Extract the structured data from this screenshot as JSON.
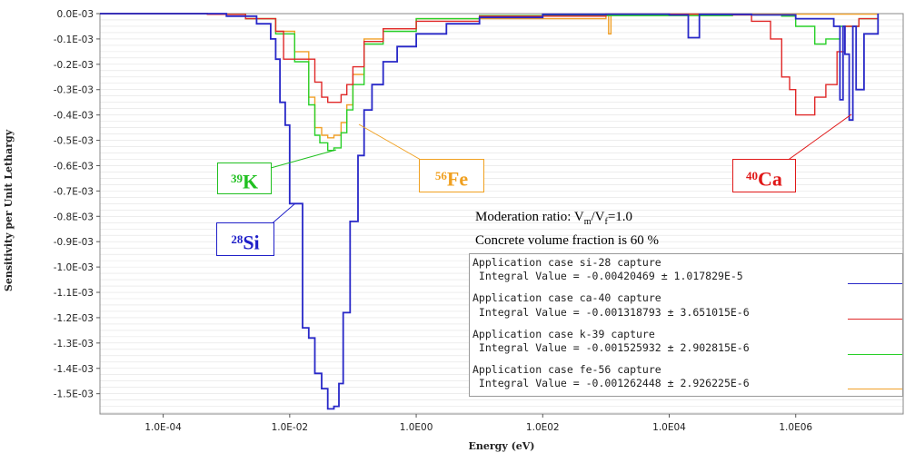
{
  "chart_data": {
    "type": "line",
    "xlabel": "Energy (eV)",
    "ylabel": "Sensitivity per Unit Lethargy",
    "xscale": "log",
    "xlim": [
      1e-05,
      50000000
    ],
    "ylim": [
      -0.00158,
      0
    ],
    "grid": true,
    "x_ticks": [
      "1.0E-04",
      "1.0E-02",
      "1.0E00",
      "1.0E02",
      "1.0E04",
      "1.0E06"
    ],
    "x_tick_values": [
      0.0001,
      0.01,
      1,
      100,
      10000,
      1000000
    ],
    "y_ticks": [
      "0.0E-03",
      "-0.1E-03",
      "-0.2E-03",
      "-0.3E-03",
      "-0.4E-03",
      "-0.5E-03",
      "-0.6E-03",
      "-0.7E-03",
      "-0.8E-03",
      "-0.9E-03",
      "-1.0E-03",
      "-1.1E-03",
      "-1.2E-03",
      "-1.3E-03",
      "-1.4E-03",
      "-1.5E-03"
    ],
    "y_tick_values": [
      0,
      -0.0001,
      -0.0002,
      -0.0003,
      -0.0004,
      -0.0005,
      -0.0006,
      -0.0007,
      -0.0008,
      -0.0009,
      -0.001,
      -0.0011,
      -0.0012,
      -0.0013,
      -0.0014,
      -0.0015
    ],
    "series": [
      {
        "key": "si",
        "color": "#2828c8",
        "points": [
          [
            1e-05,
            0
          ],
          [
            0.001,
            -1e-05
          ],
          [
            0.003,
            -4e-05
          ],
          [
            0.005,
            -0.0001
          ],
          [
            0.006,
            -0.00018
          ],
          [
            0.007,
            -0.00035
          ],
          [
            0.0085,
            -0.00044
          ],
          [
            0.01,
            -0.00075
          ],
          [
            0.014,
            -0.00075
          ],
          [
            0.016,
            -0.00124
          ],
          [
            0.02,
            -0.00128
          ],
          [
            0.025,
            -0.00142
          ],
          [
            0.032,
            -0.00148
          ],
          [
            0.04,
            -0.00156
          ],
          [
            0.05,
            -0.00155
          ],
          [
            0.06,
            -0.00146
          ],
          [
            0.07,
            -0.00118
          ],
          [
            0.09,
            -0.00082
          ],
          [
            0.12,
            -0.00056
          ],
          [
            0.15,
            -0.00038
          ],
          [
            0.2,
            -0.00028
          ],
          [
            0.3,
            -0.00019
          ],
          [
            0.5,
            -0.00013
          ],
          [
            1,
            -8e-05
          ],
          [
            3,
            -4e-05
          ],
          [
            10,
            -1.5e-05
          ],
          [
            100,
            -3e-06
          ],
          [
            1000,
            -2e-06
          ],
          [
            10000,
            -5e-06
          ],
          [
            20000,
            -9.5e-05
          ],
          [
            30000,
            -3e-06
          ],
          [
            200000,
            -5e-06
          ],
          [
            1000000,
            -2e-05
          ],
          [
            4000000,
            -5e-05
          ],
          [
            5000000,
            -0.00034
          ],
          [
            5600000,
            -5e-05
          ],
          [
            6000000,
            -0.00016
          ],
          [
            7000000,
            -0.00042
          ],
          [
            8000000,
            -5e-05
          ],
          [
            9000000,
            -0.0003
          ],
          [
            12000000,
            -8e-05
          ],
          [
            20000000,
            0
          ]
        ]
      },
      {
        "key": "ca",
        "color": "#e02828",
        "points": [
          [
            1e-05,
            0
          ],
          [
            0.0005,
            -3e-06
          ],
          [
            0.002,
            -2e-05
          ],
          [
            0.006,
            -7e-05
          ],
          [
            0.008,
            -0.00018
          ],
          [
            0.02,
            -0.00018
          ],
          [
            0.025,
            -0.00027
          ],
          [
            0.032,
            -0.00033
          ],
          [
            0.04,
            -0.00035
          ],
          [
            0.05,
            -0.00035
          ],
          [
            0.065,
            -0.00032
          ],
          [
            0.08,
            -0.00028
          ],
          [
            0.1,
            -0.00021
          ],
          [
            0.15,
            -0.00011
          ],
          [
            0.3,
            -6e-05
          ],
          [
            1,
            -3e-05
          ],
          [
            10,
            -1e-05
          ],
          [
            1000,
            -2e-06
          ],
          [
            100000,
            -5e-06
          ],
          [
            200000,
            -3e-05
          ],
          [
            400000,
            -0.0001
          ],
          [
            600000,
            -0.00025
          ],
          [
            800000,
            -0.0003
          ],
          [
            1000000,
            -0.0004
          ],
          [
            1500000,
            -0.0004
          ],
          [
            2000000,
            -0.00033
          ],
          [
            3000000,
            -0.00028
          ],
          [
            4500000,
            -0.00015
          ],
          [
            6000000,
            -5e-05
          ],
          [
            10000000,
            -2e-05
          ],
          [
            20000000,
            0
          ]
        ]
      },
      {
        "key": "k",
        "color": "#28d028",
        "points": [
          [
            1e-05,
            0
          ],
          [
            0.0005,
            -3e-06
          ],
          [
            0.002,
            -2e-05
          ],
          [
            0.006,
            -8e-05
          ],
          [
            0.012,
            -0.00019
          ],
          [
            0.02,
            -0.00036
          ],
          [
            0.025,
            -0.00048
          ],
          [
            0.03,
            -0.00051
          ],
          [
            0.04,
            -0.00054
          ],
          [
            0.05,
            -0.00053
          ],
          [
            0.065,
            -0.00047
          ],
          [
            0.08,
            -0.00038
          ],
          [
            0.1,
            -0.00028
          ],
          [
            0.15,
            -0.00012
          ],
          [
            0.3,
            -7e-05
          ],
          [
            1,
            -2e-05
          ],
          [
            10,
            -8e-06
          ],
          [
            100000,
            -5e-06
          ],
          [
            600000,
            -1e-05
          ],
          [
            1000000,
            -5e-05
          ],
          [
            2000000,
            -0.00012
          ],
          [
            3000000,
            -0.0001
          ],
          [
            5000000,
            -5e-05
          ],
          [
            10000000,
            -2e-05
          ],
          [
            20000000,
            0
          ]
        ]
      },
      {
        "key": "fe",
        "color": "#f0a028",
        "points": [
          [
            1e-05,
            0
          ],
          [
            0.0005,
            -3e-06
          ],
          [
            0.002,
            -2e-05
          ],
          [
            0.006,
            -7e-05
          ],
          [
            0.012,
            -0.00015
          ],
          [
            0.02,
            -0.00033
          ],
          [
            0.025,
            -0.00045
          ],
          [
            0.032,
            -0.00048
          ],
          [
            0.04,
            -0.00049
          ],
          [
            0.05,
            -0.00048
          ],
          [
            0.065,
            -0.00043
          ],
          [
            0.08,
            -0.00036
          ],
          [
            0.1,
            -0.00024
          ],
          [
            0.15,
            -0.0001
          ],
          [
            0.3,
            -6e-05
          ],
          [
            1,
            -2e-05
          ],
          [
            1000,
            -2e-06
          ],
          [
            1100,
            -8e-05
          ],
          [
            1200,
            -2e-06
          ],
          [
            20000000,
            0
          ]
        ]
      }
    ]
  },
  "annotations": {
    "si": {
      "mass": "28",
      "symbol": "Si",
      "color": "#2020c8"
    },
    "k": {
      "mass": "39",
      "symbol": "K",
      "color": "#20c020"
    },
    "fe": {
      "mass": "56",
      "symbol": "Fe",
      "color": "#f0a020"
    },
    "ca": {
      "mass": "40",
      "symbol": "Ca",
      "color": "#e01818"
    }
  },
  "info": {
    "moderation_prefix": "Moderation ratio: V",
    "moderation_sub_m": "m",
    "moderation_slash": "/V",
    "moderation_sub_f": "f",
    "moderation_suffix": "=1.0",
    "concrete": "Concrete volume fraction is 60 %"
  },
  "legend": [
    {
      "title": "Application case si-28 capture",
      "value": " Integral Value = -0.00420469 ± 1.017829E-5",
      "color": "#2828c8"
    },
    {
      "title": "Application case ca-40 capture",
      "value": " Integral Value = -0.001318793 ± 3.651015E-6",
      "color": "#e02828"
    },
    {
      "title": "Application case k-39 capture",
      "value": " Integral Value = -0.001525932 ± 2.902815E-6",
      "color": "#28d028"
    },
    {
      "title": "Application case fe-56 capture",
      "value": " Integral Value = -0.001262448 ± 2.926225E-6",
      "color": "#f0a028"
    }
  ]
}
